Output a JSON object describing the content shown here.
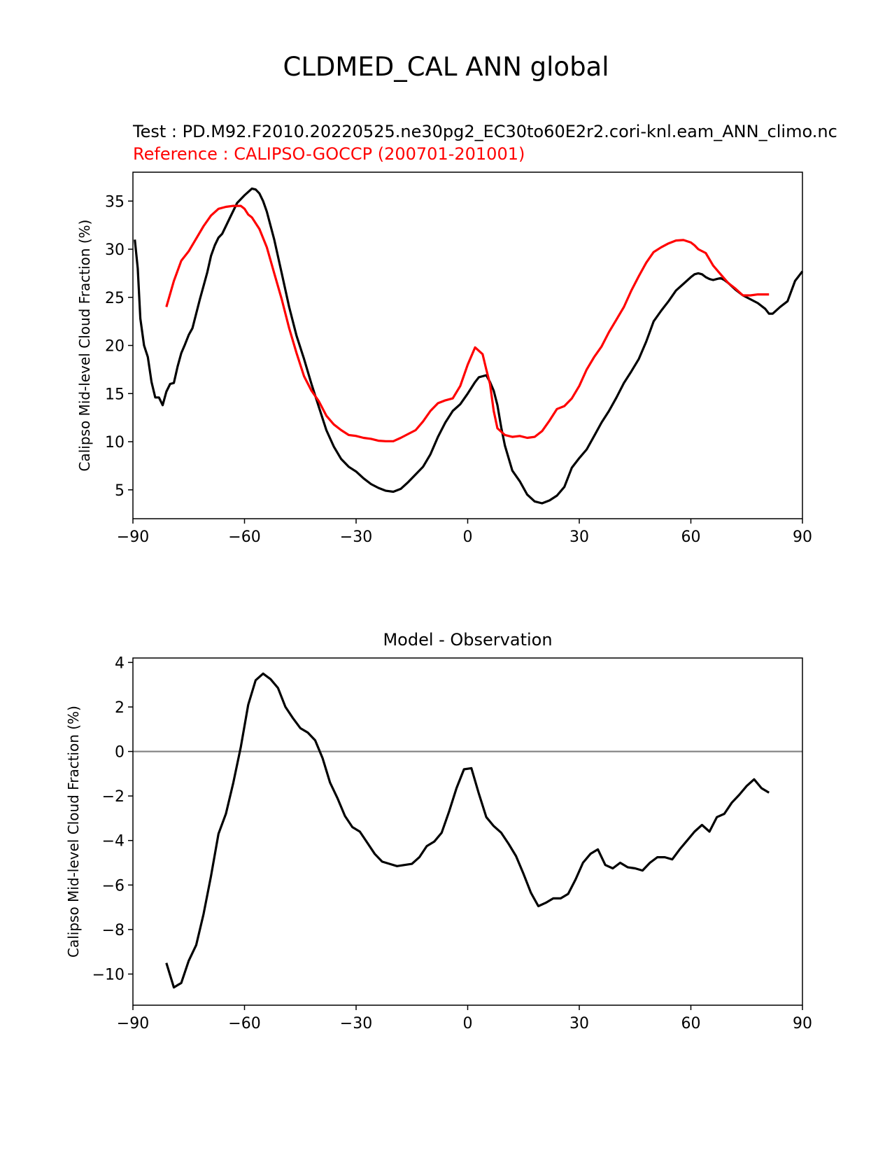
{
  "figure": {
    "title": "CLDMED_CAL ANN global",
    "test_label": "Test : PD.M92.F2010.20220525.ne30pg2_EC30to60E2r2.cori-knl.eam_ANN_climo.nc",
    "ref_label": "Reference : CALIPSO-GOCCP (200701-201001)",
    "colors": {
      "test": "#000000",
      "reference": "#ff0000",
      "zero_line": "#808080"
    }
  },
  "chart_data": [
    {
      "type": "line",
      "title": "",
      "xlabel": "",
      "ylabel": "Calipso Mid-level Cloud Fraction (%)",
      "xlim": [
        -90,
        90
      ],
      "ylim": [
        2,
        38
      ],
      "xticks": [
        -90,
        -60,
        -30,
        0,
        30,
        60,
        90
      ],
      "yticks": [
        5,
        10,
        15,
        20,
        25,
        30,
        35
      ],
      "grid": false,
      "series": [
        {
          "name": "Test",
          "color": "#000000",
          "x": [
            -89.5,
            -88.7,
            -88,
            -87,
            -86,
            -85,
            -84,
            -83,
            -82,
            -81,
            -80,
            -79,
            -78,
            -77,
            -76,
            -75,
            -74,
            -73,
            -72,
            -71,
            -70,
            -69,
            -68,
            -67,
            -66,
            -64,
            -62,
            -60,
            -58,
            -57,
            -56,
            -55,
            -54,
            -52,
            -50,
            -48,
            -46,
            -44,
            -42,
            -40,
            -38,
            -36,
            -34,
            -32,
            -30,
            -28,
            -26,
            -24,
            -22,
            -20,
            -18,
            -16,
            -14,
            -12,
            -10,
            -8,
            -6,
            -4,
            -2,
            0,
            2,
            3,
            4,
            5,
            6,
            7,
            8,
            9,
            10,
            12,
            14,
            16,
            18,
            20,
            22,
            24,
            26,
            28,
            30,
            32,
            34,
            36,
            38,
            40,
            42,
            44,
            46,
            48,
            50,
            52,
            54,
            56,
            58,
            60,
            61,
            62,
            63,
            64,
            65,
            66,
            67,
            68,
            69,
            70,
            72,
            74,
            76,
            78,
            80,
            81,
            82,
            84,
            86,
            88,
            90
          ],
          "y": [
            31,
            28,
            22.8,
            20,
            18.8,
            16.2,
            14.6,
            14.6,
            13.8,
            15.2,
            16,
            16.1,
            17.8,
            19.2,
            20.1,
            21.1,
            21.8,
            23.3,
            24.8,
            26.2,
            27.6,
            29.3,
            30.4,
            31.2,
            31.6,
            33.2,
            34.8,
            35.6,
            36.3,
            36.2,
            35.8,
            35,
            33.9,
            31,
            27.5,
            24,
            21,
            18.6,
            16,
            13.6,
            11.2,
            9.5,
            8.2,
            7.4,
            6.9,
            6.2,
            5.6,
            5.2,
            4.9,
            4.8,
            5.1,
            5.8,
            6.6,
            7.4,
            8.7,
            10.5,
            12,
            13.2,
            13.9,
            15,
            16.2,
            16.7,
            16.8,
            16.9,
            16.2,
            15.3,
            13.8,
            11.5,
            9.6,
            7,
            5.9,
            4.5,
            3.8,
            3.6,
            3.9,
            4.4,
            5.3,
            7.3,
            8.3,
            9.2,
            10.6,
            12,
            13.2,
            14.6,
            16.1,
            17.3,
            18.6,
            20.4,
            22.5,
            23.6,
            24.6,
            25.7,
            26.4,
            27.1,
            27.4,
            27.5,
            27.4,
            27.1,
            26.9,
            26.8,
            26.9,
            27,
            26.8,
            26.5,
            25.8,
            25.2,
            24.8,
            24.4,
            23.8,
            23.3,
            23.3,
            24,
            24.6,
            26.7,
            27.7
          ]
        },
        {
          "name": "Reference",
          "color": "#ff0000",
          "x": [
            -81,
            -79,
            -77,
            -75,
            -73,
            -71,
            -69,
            -67,
            -65,
            -63,
            -61,
            -60,
            -59,
            -58,
            -56,
            -54,
            -52,
            -50,
            -48,
            -46,
            -44,
            -42,
            -40,
            -38,
            -36,
            -34,
            -32,
            -30,
            -28,
            -26,
            -24,
            -22,
            -20,
            -18,
            -16,
            -14,
            -12,
            -10,
            -8,
            -6,
            -4,
            -2,
            0,
            2,
            4,
            5,
            6,
            7,
            8,
            10,
            12,
            14,
            16,
            18,
            20,
            22,
            24,
            26,
            28,
            30,
            32,
            34,
            36,
            38,
            40,
            42,
            44,
            46,
            48,
            50,
            52,
            54,
            56,
            58,
            60,
            61,
            62,
            64,
            66,
            68,
            70,
            72,
            74,
            76,
            78,
            79,
            81
          ],
          "y": [
            24,
            26.7,
            28.8,
            29.8,
            31.1,
            32.4,
            33.5,
            34.2,
            34.4,
            34.5,
            34.5,
            34.2,
            33.6,
            33.3,
            32.1,
            30.2,
            27.5,
            24.8,
            21.8,
            19.2,
            16.8,
            15.3,
            14.2,
            12.7,
            11.8,
            11.2,
            10.7,
            10.6,
            10.4,
            10.3,
            10.1,
            10.05,
            10.05,
            10.4,
            10.8,
            11.2,
            12.1,
            13.2,
            14,
            14.3,
            14.5,
            15.8,
            18,
            19.8,
            19.1,
            17.5,
            16,
            13.2,
            11.4,
            10.7,
            10.5,
            10.6,
            10.4,
            10.5,
            11.1,
            12.2,
            13.4,
            13.7,
            14.5,
            15.8,
            17.5,
            18.8,
            19.9,
            21.4,
            22.7,
            24,
            25.7,
            27.2,
            28.6,
            29.7,
            30.2,
            30.6,
            30.9,
            30.95,
            30.7,
            30.4,
            30,
            29.6,
            28.3,
            27.4,
            26.5,
            25.9,
            25.2,
            25.2,
            25.3,
            25.3,
            25.3
          ]
        }
      ]
    },
    {
      "type": "line",
      "title": "Model - Observation",
      "xlabel": "",
      "ylabel": "Calipso Mid-level Cloud Fraction (%)",
      "xlim": [
        -90,
        90
      ],
      "ylim": [
        -11.4,
        4.2
      ],
      "xticks": [
        -90,
        -60,
        -30,
        0,
        30,
        60,
        90
      ],
      "yticks": [
        4,
        2,
        0,
        -2,
        -4,
        -6,
        -8,
        -10
      ],
      "grid": false,
      "hline": 0,
      "series": [
        {
          "name": "Model - Observation",
          "color": "#000000",
          "x": [
            -81,
            -79,
            -77,
            -75,
            -73,
            -71,
            -69,
            -67,
            -65,
            -63,
            -61,
            -59,
            -57,
            -55,
            -53,
            -51,
            -49,
            -47,
            -45,
            -43,
            -41,
            -39,
            -37,
            -35,
            -33,
            -31,
            -29,
            -27,
            -25,
            -23,
            -21,
            -19,
            -17,
            -15,
            -13,
            -11,
            -9,
            -7,
            -5,
            -3,
            -1,
            1,
            3,
            5,
            7,
            9,
            11,
            13,
            15,
            17,
            19,
            21,
            23,
            25,
            27,
            29,
            31,
            33,
            35,
            37,
            39,
            41,
            43,
            45,
            47,
            49,
            51,
            53,
            55,
            57,
            59,
            61,
            63,
            65,
            67,
            69,
            71,
            73,
            75,
            77,
            79,
            81
          ],
          "y": [
            -9.5,
            -10.6,
            -10.4,
            -9.4,
            -8.7,
            -7.3,
            -5.6,
            -3.7,
            -2.8,
            -1.4,
            0.2,
            2.1,
            3.2,
            3.5,
            3.25,
            2.85,
            2,
            1.5,
            1.05,
            0.85,
            0.5,
            -0.3,
            -1.4,
            -2.1,
            -2.9,
            -3.4,
            -3.6,
            -4.1,
            -4.6,
            -4.95,
            -5.05,
            -5.15,
            -5.1,
            -5.05,
            -4.75,
            -4.25,
            -4.05,
            -3.65,
            -2.7,
            -1.65,
            -0.8,
            -0.75,
            -1.9,
            -2.95,
            -3.35,
            -3.65,
            -4.15,
            -4.7,
            -5.5,
            -6.35,
            -6.95,
            -6.8,
            -6.6,
            -6.6,
            -6.4,
            -5.75,
            -5,
            -4.6,
            -4.4,
            -5.1,
            -5.25,
            -5.0,
            -5.2,
            -5.25,
            -5.35,
            -5.0,
            -4.75,
            -4.75,
            -4.85,
            -4.4,
            -4.0,
            -3.6,
            -3.3,
            -3.6,
            -2.95,
            -2.8,
            -2.3,
            -1.95,
            -1.55,
            -1.25,
            -1.65,
            -1.85
          ]
        }
      ]
    }
  ]
}
